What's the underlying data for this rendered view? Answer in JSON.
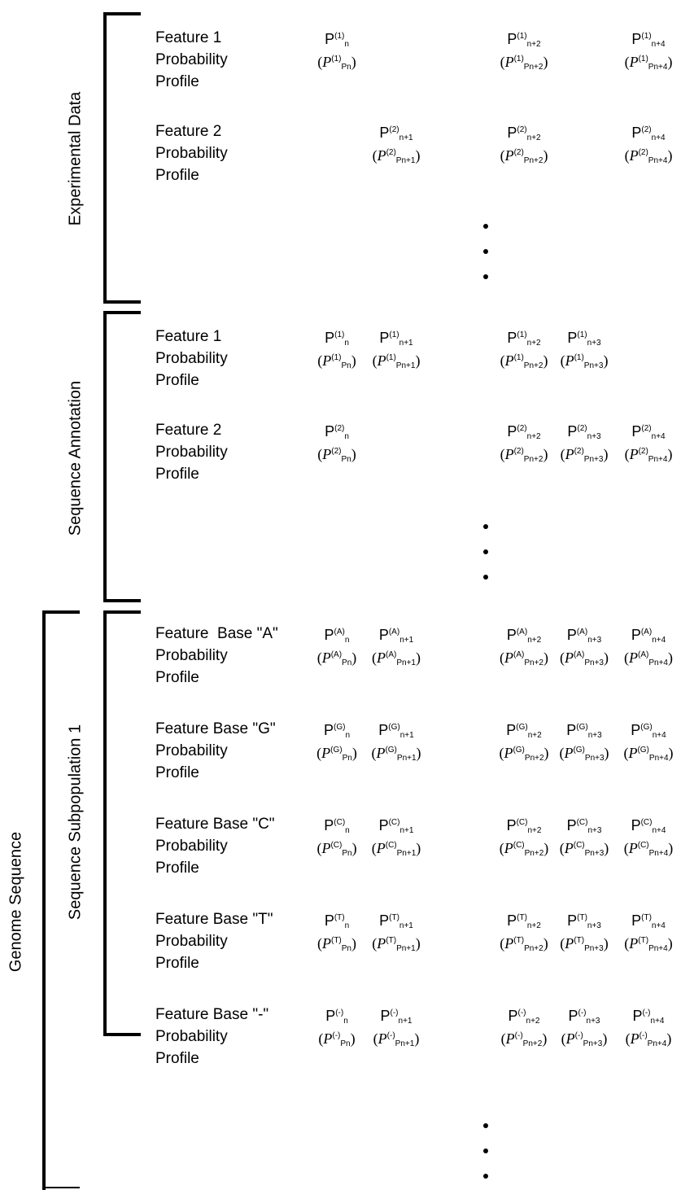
{
  "brackets": {
    "experimental_data": "Experimental Data",
    "sequence_annotation": "Sequence Annotation",
    "sequence_subpopulation": "Sequence Subpopulation 1",
    "genome_sequence": "Genome Sequence"
  },
  "rows": [
    {
      "label": [
        "Feature 1",
        "Probability",
        "Profile"
      ],
      "sup": "(1)",
      "positions": [
        "n",
        "n+2",
        "n+4"
      ]
    },
    {
      "label": [
        "Feature 2",
        "Probability",
        "Profile"
      ],
      "sup": "(2)",
      "positions": [
        "n+1",
        "n+2",
        "n+4"
      ]
    },
    {
      "label": [
        "Feature 1",
        "Probability",
        "Profile"
      ],
      "sup": "(1)",
      "positions": [
        "n",
        "n+1",
        "n+2",
        "n+3"
      ]
    },
    {
      "label": [
        "Feature 2",
        "Probability",
        "Profile"
      ],
      "sup": "(2)",
      "positions": [
        "n",
        "n+2",
        "n+3",
        "n+4"
      ]
    },
    {
      "label": [
        "Feature  Base \"A\"",
        "Probability",
        "Profile"
      ],
      "sup": "(A)",
      "positions": [
        "n",
        "n+1",
        "n+2",
        "n+3",
        "n+4"
      ]
    },
    {
      "label": [
        "Feature Base \"G\"",
        "Probability",
        "Profile"
      ],
      "sup": "(G)",
      "positions": [
        "n",
        "n+1",
        "n+2",
        "n+3",
        "n+4"
      ]
    },
    {
      "label": [
        "Feature Base \"C\"",
        "Probability",
        "Profile"
      ],
      "sup": "(C)",
      "positions": [
        "n",
        "n+1",
        "n+2",
        "n+3",
        "n+4"
      ]
    },
    {
      "label": [
        "Feature Base \"T\"",
        "Probability",
        "Profile"
      ],
      "sup": "(T)",
      "positions": [
        "n",
        "n+1",
        "n+2",
        "n+3",
        "n+4"
      ]
    },
    {
      "label": [
        "Feature Base \"-\"",
        "Probability",
        "Profile"
      ],
      "sup": "(-)",
      "positions": [
        "n",
        "n+1",
        "n+2",
        "n+3",
        "n+4"
      ]
    }
  ],
  "symbols": {
    "prob": "P",
    "mean_prefix": "P"
  }
}
